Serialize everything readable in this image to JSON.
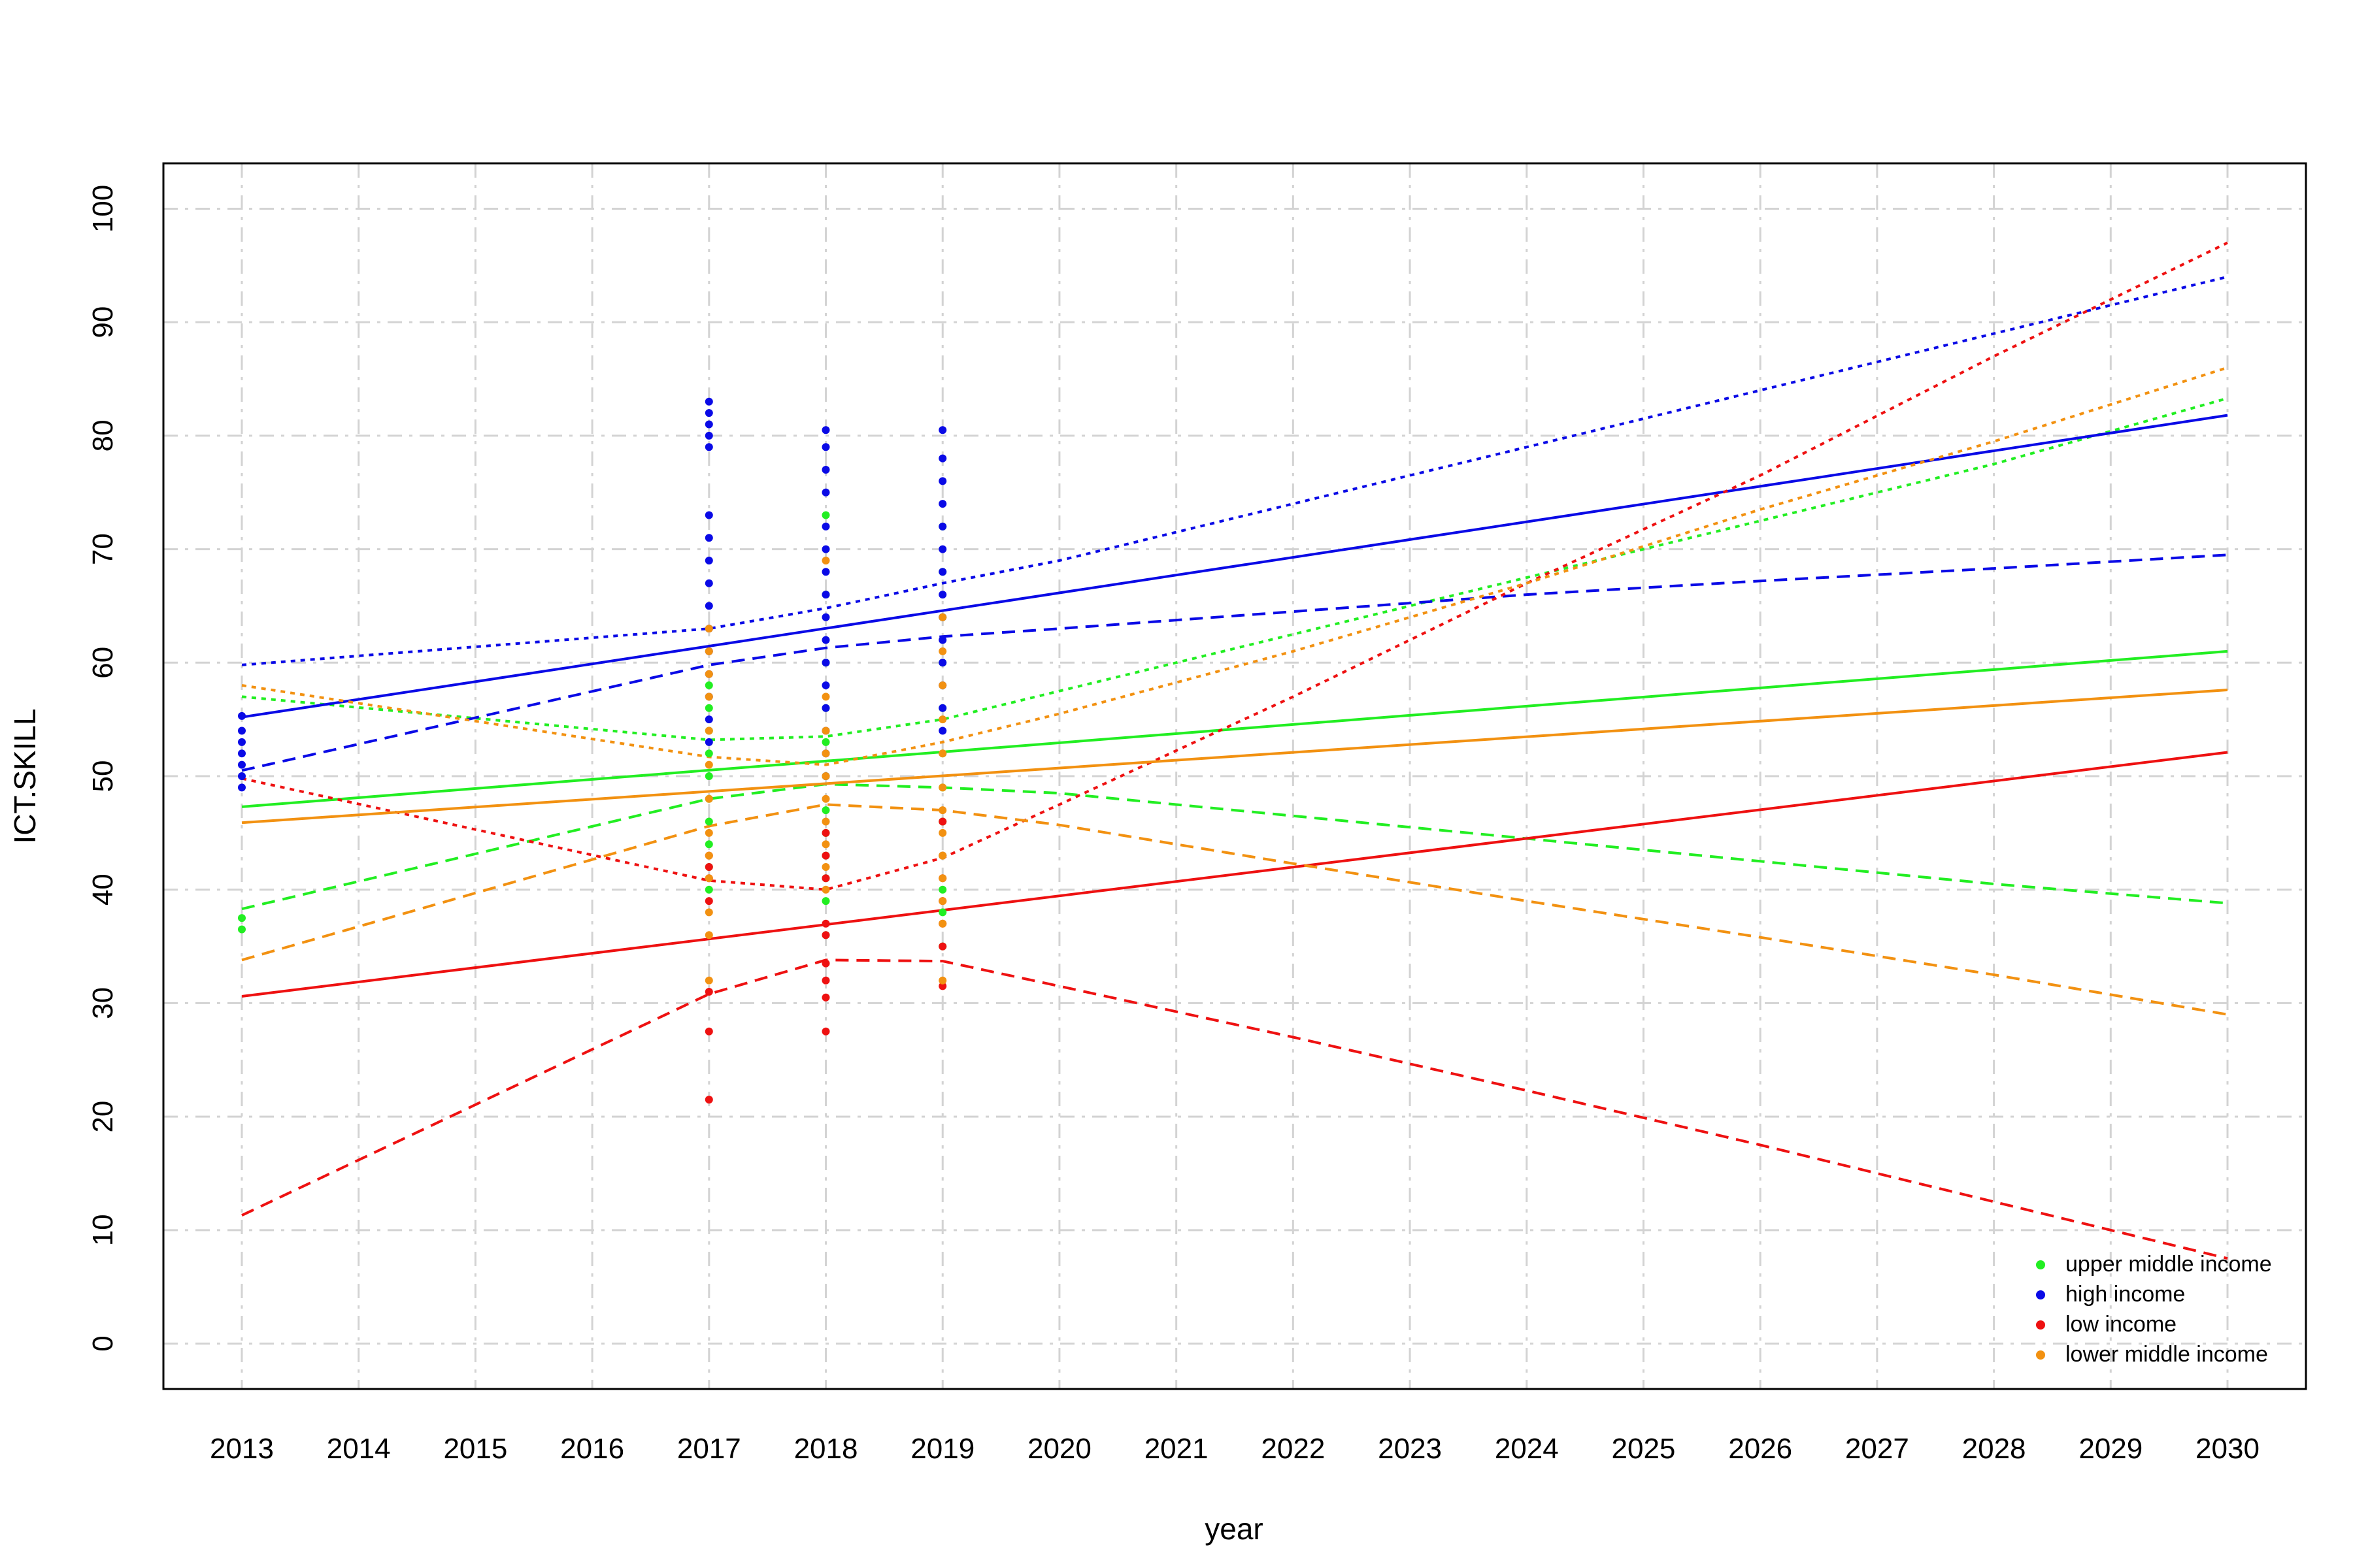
{
  "chart_data": {
    "type": "scatter",
    "title": "",
    "xlabel": "year",
    "ylabel": "ICT.SKILL",
    "xlim": [
      2013,
      2030
    ],
    "ylim": [
      -4,
      104
    ],
    "x_ticks": [
      "2013",
      "2014",
      "2015",
      "2016",
      "2017",
      "2018",
      "2019",
      "2020",
      "2021",
      "2022",
      "2023",
      "2024",
      "2025",
      "2026",
      "2027",
      "2028",
      "2029",
      "2030"
    ],
    "y_ticks": [
      "0",
      "10",
      "20",
      "30",
      "40",
      "50",
      "60",
      "70",
      "80",
      "90",
      "100"
    ],
    "grid": true,
    "legend_position": "bottom-right",
    "series": [
      {
        "name": "upper middle income",
        "color": "#22ee22",
        "points": [
          [
            2013,
            37.5
          ],
          [
            2013,
            36.5
          ],
          [
            2017,
            58
          ],
          [
            2017,
            56
          ],
          [
            2017,
            54
          ],
          [
            2017,
            52
          ],
          [
            2017,
            50
          ],
          [
            2017,
            48
          ],
          [
            2017,
            46
          ],
          [
            2017,
            44
          ],
          [
            2017,
            42
          ],
          [
            2017,
            40
          ],
          [
            2018,
            73
          ],
          [
            2018,
            66
          ],
          [
            2018,
            60
          ],
          [
            2018,
            56
          ],
          [
            2018,
            53
          ],
          [
            2018,
            50
          ],
          [
            2018,
            47
          ],
          [
            2018,
            45
          ],
          [
            2018,
            43
          ],
          [
            2018,
            41
          ],
          [
            2018,
            39
          ],
          [
            2018,
            36
          ],
          [
            2019,
            72
          ],
          [
            2019,
            68
          ],
          [
            2019,
            64
          ],
          [
            2019,
            60
          ],
          [
            2019,
            56
          ],
          [
            2019,
            52
          ],
          [
            2019,
            49
          ],
          [
            2019,
            46
          ],
          [
            2019,
            43
          ],
          [
            2019,
            40
          ],
          [
            2019,
            38
          ],
          [
            2019,
            35
          ]
        ],
        "fit": [
          [
            2013,
            47.3
          ],
          [
            2030,
            61.0
          ]
        ],
        "ci_upper": [
          [
            2013,
            57
          ],
          [
            2017,
            53.2
          ],
          [
            2018,
            53.5
          ],
          [
            2019,
            55
          ],
          [
            2020,
            57.5
          ],
          [
            2022,
            62.5
          ],
          [
            2024,
            67.5
          ],
          [
            2026,
            72.5
          ],
          [
            2028,
            77.5
          ],
          [
            2030,
            83.3
          ]
        ],
        "ci_lower": [
          [
            2013,
            38.3
          ],
          [
            2017,
            48
          ],
          [
            2018,
            49.3
          ],
          [
            2019,
            49
          ],
          [
            2020,
            48.5
          ],
          [
            2022,
            46.5
          ],
          [
            2024,
            44.5
          ],
          [
            2026,
            42.5
          ],
          [
            2028,
            40.5
          ],
          [
            2030,
            38.8
          ]
        ]
      },
      {
        "name": "high income",
        "color": "#0a0ae6",
        "points": [
          [
            2013,
            55.3
          ],
          [
            2013,
            54
          ],
          [
            2013,
            53
          ],
          [
            2013,
            52
          ],
          [
            2013,
            51
          ],
          [
            2013,
            50
          ],
          [
            2013,
            49
          ],
          [
            2017,
            83
          ],
          [
            2017,
            82
          ],
          [
            2017,
            81
          ],
          [
            2017,
            80
          ],
          [
            2017,
            79
          ],
          [
            2017,
            73
          ],
          [
            2017,
            71
          ],
          [
            2017,
            69
          ],
          [
            2017,
            67
          ],
          [
            2017,
            65
          ],
          [
            2017,
            63
          ],
          [
            2017,
            61
          ],
          [
            2017,
            59
          ],
          [
            2017,
            57
          ],
          [
            2017,
            55
          ],
          [
            2017,
            53
          ],
          [
            2018,
            80.5
          ],
          [
            2018,
            79
          ],
          [
            2018,
            77
          ],
          [
            2018,
            75
          ],
          [
            2018,
            72
          ],
          [
            2018,
            70
          ],
          [
            2018,
            68
          ],
          [
            2018,
            66
          ],
          [
            2018,
            64
          ],
          [
            2018,
            62
          ],
          [
            2018,
            60
          ],
          [
            2018,
            58
          ],
          [
            2018,
            56
          ],
          [
            2018,
            54
          ],
          [
            2018,
            52
          ],
          [
            2018,
            50
          ],
          [
            2019,
            80.5
          ],
          [
            2019,
            78
          ],
          [
            2019,
            76
          ],
          [
            2019,
            74
          ],
          [
            2019,
            72
          ],
          [
            2019,
            70
          ],
          [
            2019,
            68
          ],
          [
            2019,
            66
          ],
          [
            2019,
            64
          ],
          [
            2019,
            62
          ],
          [
            2019,
            60
          ],
          [
            2019,
            58
          ],
          [
            2019,
            56
          ],
          [
            2019,
            54
          ]
        ],
        "fit": [
          [
            2013,
            55.2
          ],
          [
            2030,
            81.8
          ]
        ],
        "ci_upper": [
          [
            2013,
            59.8
          ],
          [
            2017,
            63
          ],
          [
            2018,
            64.8
          ],
          [
            2019,
            67
          ],
          [
            2020,
            69
          ],
          [
            2022,
            74
          ],
          [
            2024,
            79
          ],
          [
            2026,
            84
          ],
          [
            2028,
            89
          ],
          [
            2030,
            94
          ]
        ],
        "ci_lower": [
          [
            2013,
            50.5
          ],
          [
            2017,
            59.8
          ],
          [
            2018,
            61.3
          ],
          [
            2019,
            62.3
          ],
          [
            2020,
            63
          ],
          [
            2022,
            64.5
          ],
          [
            2024,
            66
          ],
          [
            2026,
            67.2
          ],
          [
            2028,
            68.3
          ],
          [
            2030,
            69.5
          ]
        ]
      },
      {
        "name": "low income",
        "color": "#ee1111",
        "points": [
          [
            2017,
            43
          ],
          [
            2017,
            42
          ],
          [
            2017,
            41
          ],
          [
            2017,
            39
          ],
          [
            2017,
            31
          ],
          [
            2017,
            27.5
          ],
          [
            2017,
            21.5
          ],
          [
            2018,
            45
          ],
          [
            2018,
            43
          ],
          [
            2018,
            41
          ],
          [
            2018,
            37
          ],
          [
            2018,
            36
          ],
          [
            2018,
            33.5
          ],
          [
            2018,
            32
          ],
          [
            2018,
            30.5
          ],
          [
            2018,
            27.5
          ],
          [
            2019,
            46
          ],
          [
            2019,
            43
          ],
          [
            2019,
            41
          ],
          [
            2019,
            39
          ],
          [
            2019,
            37
          ],
          [
            2019,
            35
          ],
          [
            2019,
            31.5
          ]
        ],
        "fit": [
          [
            2013,
            30.6
          ],
          [
            2030,
            52.1
          ]
        ],
        "ci_upper": [
          [
            2013,
            49.8
          ],
          [
            2017,
            40.8
          ],
          [
            2018,
            40
          ],
          [
            2019,
            42.8
          ],
          [
            2020,
            47.5
          ],
          [
            2022,
            57
          ],
          [
            2024,
            67
          ],
          [
            2026,
            76.5
          ],
          [
            2028,
            87
          ],
          [
            2030,
            97
          ]
        ],
        "ci_lower": [
          [
            2013,
            11.3
          ],
          [
            2017,
            30.8
          ],
          [
            2018,
            33.8
          ],
          [
            2019,
            33.7
          ],
          [
            2020,
            31.5
          ],
          [
            2022,
            27
          ],
          [
            2024,
            22.3
          ],
          [
            2026,
            17.5
          ],
          [
            2028,
            12.5
          ],
          [
            2030,
            7.5
          ]
        ]
      },
      {
        "name": "lower middle income",
        "color": "#f29111",
        "points": [
          [
            2017,
            63
          ],
          [
            2017,
            61
          ],
          [
            2017,
            59
          ],
          [
            2017,
            57
          ],
          [
            2017,
            54
          ],
          [
            2017,
            51
          ],
          [
            2017,
            48
          ],
          [
            2017,
            45
          ],
          [
            2017,
            43
          ],
          [
            2017,
            41
          ],
          [
            2017,
            38
          ],
          [
            2017,
            36
          ],
          [
            2017,
            32
          ],
          [
            2018,
            69
          ],
          [
            2018,
            57
          ],
          [
            2018,
            54
          ],
          [
            2018,
            52
          ],
          [
            2018,
            50
          ],
          [
            2018,
            48
          ],
          [
            2018,
            46
          ],
          [
            2018,
            44
          ],
          [
            2018,
            42
          ],
          [
            2018,
            40
          ],
          [
            2019,
            64
          ],
          [
            2019,
            61
          ],
          [
            2019,
            58
          ],
          [
            2019,
            55
          ],
          [
            2019,
            52
          ],
          [
            2019,
            49
          ],
          [
            2019,
            47
          ],
          [
            2019,
            45
          ],
          [
            2019,
            43
          ],
          [
            2019,
            41
          ],
          [
            2019,
            39
          ],
          [
            2019,
            37
          ],
          [
            2019,
            32
          ]
        ],
        "fit": [
          [
            2013,
            45.9
          ],
          [
            2030,
            57.6
          ]
        ],
        "ci_upper": [
          [
            2013,
            58
          ],
          [
            2017,
            51.7
          ],
          [
            2018,
            51
          ],
          [
            2019,
            53
          ],
          [
            2020,
            55.5
          ],
          [
            2022,
            61
          ],
          [
            2024,
            67
          ],
          [
            2026,
            73.5
          ],
          [
            2028,
            79.5
          ],
          [
            2030,
            86
          ]
        ],
        "ci_lower": [
          [
            2013,
            33.8
          ],
          [
            2017,
            45.6
          ],
          [
            2018,
            47.5
          ],
          [
            2019,
            47
          ],
          [
            2020,
            45.7
          ],
          [
            2022,
            42.3
          ],
          [
            2024,
            39
          ],
          [
            2026,
            35.8
          ],
          [
            2028,
            32.5
          ],
          [
            2030,
            29
          ]
        ]
      }
    ]
  }
}
